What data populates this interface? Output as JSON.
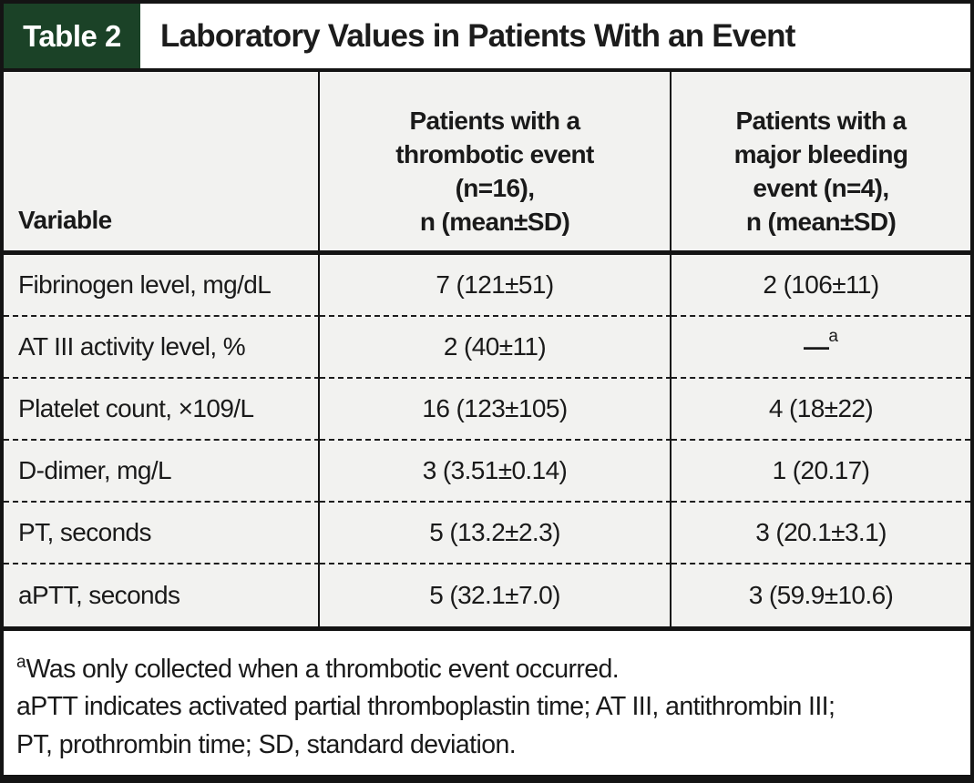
{
  "figure": {
    "badge_label": "Table 2",
    "title": "Laboratory Values in Patients With an Event",
    "colors": {
      "badge_green": "#1b4227",
      "cell_background": "#f2f2f0",
      "border_black": "#141414"
    }
  },
  "table": {
    "header": {
      "variable": "Variable",
      "thrombotic": "Patients with a\nthrombotic event\n(n=16),\nn (mean±SD)",
      "bleeding": "Patients with a\nmajor bleeding\nevent (n=4),\nn (mean±SD)"
    },
    "rows": [
      {
        "variable": "Fibrinogen level, mg/dL",
        "thrombotic": "7 (121±51)",
        "bleeding": "2 (106±11)"
      },
      {
        "variable": "AT III activity level, %",
        "thrombotic": "2 (40±11)",
        "bleeding": "—",
        "bleeding_sup": "a"
      },
      {
        "variable": "Platelet count, ×109/L",
        "thrombotic": "16 (123±105)",
        "bleeding": "4 (18±22)"
      },
      {
        "variable": "D-dimer, mg/L",
        "thrombotic": "3 (3.51±0.14)",
        "bleeding": "1 (20.17)"
      },
      {
        "variable": "PT, seconds",
        "thrombotic": "5 (13.2±2.3)",
        "bleeding": "3 (20.1±3.1)"
      },
      {
        "variable": "aPTT, seconds",
        "thrombotic": "5 (32.1±7.0)",
        "bleeding": "3 (59.9±10.6)"
      }
    ],
    "footnotes": {
      "note_a_marker": "a",
      "note_a_text": "Was only collected when a thrombotic event occurred.",
      "abbreviations": "aPTT indicates activated partial thromboplastin time; AT III, antithrombin III;\nPT, prothrombin time; SD, standard deviation."
    }
  }
}
